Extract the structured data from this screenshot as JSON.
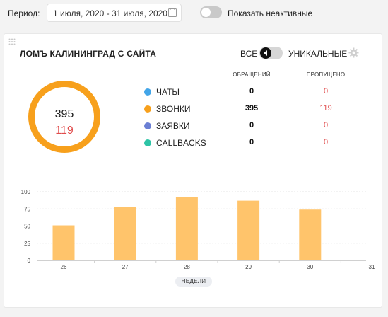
{
  "topbar": {
    "period_label": "Период:",
    "period_value": "1 июля, 2020 - 31 июля, 2020",
    "show_inactive_label": "Показать неактивные",
    "show_inactive_on": false
  },
  "card": {
    "title": "ЛОМЪ КАЛИНИНГРАД С САЙТА",
    "mode_all_label": "ВСЕ",
    "mode_unique_label": "УНИКАЛЬНЫЕ",
    "donut": {
      "total": "395",
      "missed": "119",
      "ring_color": "#f7a01c"
    },
    "table": {
      "col_calls": "ОБРАЩЕНИЙ",
      "col_missed": "ПРОПУЩЕНО",
      "rows": [
        {
          "label": "ЧАТЫ",
          "color": "#42a5e8",
          "calls": "0",
          "missed": "0"
        },
        {
          "label": "ЗВОНКИ",
          "color": "#f7a01c",
          "calls": "395",
          "missed": "119"
        },
        {
          "label": "ЗАЯВКИ",
          "color": "#6b7fd4",
          "calls": "0",
          "missed": "0"
        },
        {
          "label": "CALLBACKS",
          "color": "#2ec4a6",
          "calls": "0",
          "missed": "0"
        }
      ]
    },
    "x_axis_badge": "НЕДЕЛИ"
  },
  "chart_data": {
    "type": "bar",
    "categories": [
      "26",
      "27",
      "28",
      "29",
      "30",
      "31"
    ],
    "values": [
      51,
      78,
      92,
      87,
      74,
      0
    ],
    "yticks": [
      "100",
      "75",
      "50",
      "25",
      "0"
    ],
    "ylim": [
      0,
      100
    ],
    "xlabel": "НЕДЕЛИ",
    "bar_color": "#ffc46b",
    "grid": true
  }
}
